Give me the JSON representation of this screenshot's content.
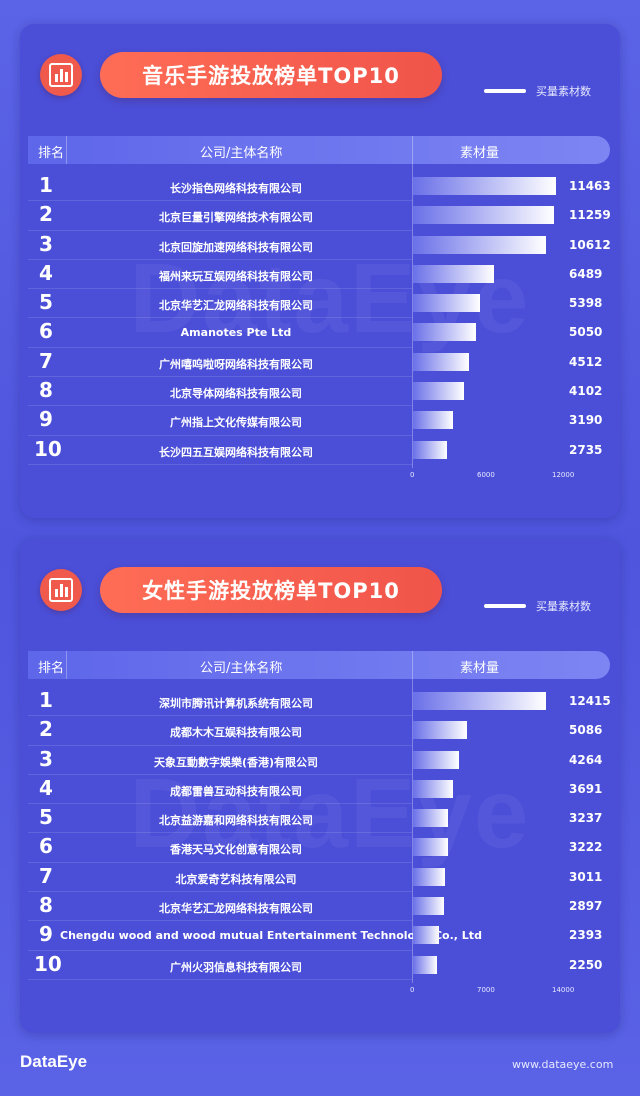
{
  "colors": {
    "background": "#5259e0",
    "panel": "#4b4fd8",
    "title_pill": "#f5594b",
    "bar_end": "#ffffff"
  },
  "icons": {
    "panel_icon": "bar-chart-icon"
  },
  "chart_data": [
    {
      "type": "bar",
      "title": "音乐手游投放榜单TOP10",
      "legend": "买量素材数",
      "columns": [
        "排名",
        "公司/主体名称",
        "素材量"
      ],
      "categories": [
        "长沙指色网络科技有限公司",
        "北京巨量引擎网络技术有限公司",
        "北京回旋加速网络科技有限公司",
        "福州来玩互娱网络科技有限公司",
        "北京华艺汇龙网络科技有限公司",
        "Amanotes Pte Ltd",
        "广州嘻呜啦呀网络科技有限公司",
        "北京导体网络科技有限公司",
        "广州指上文化传媒有限公司",
        "长沙四五互娱网络科技有限公司"
      ],
      "ranks": [
        "1",
        "2",
        "3",
        "4",
        "5",
        "6",
        "7",
        "8",
        "9",
        "10"
      ],
      "values": [
        11463,
        11259,
        10612,
        6489,
        5398,
        5050,
        4512,
        4102,
        3190,
        2735
      ],
      "xlim": [
        0,
        12000
      ],
      "xticks": [
        "0",
        "6000",
        "12000"
      ],
      "grid": false,
      "legend_position": "top-right"
    },
    {
      "type": "bar",
      "title": "女性手游投放榜单TOP10",
      "legend": "买量素材数",
      "columns": [
        "排名",
        "公司/主体名称",
        "素材量"
      ],
      "categories": [
        "深圳市腾讯计算机系统有限公司",
        "成都木木互娱科技有限公司",
        "天象互動數字娛樂(香港)有限公司",
        "成都雷兽互动科技有限公司",
        "北京益游嘉和网络科技有限公司",
        "香港天马文化创意有限公司",
        "北京爱奇艺科技有限公司",
        "北京华艺汇龙网络科技有限公司",
        "Chengdu wood and wood mutual Entertainment Technology Co., Ltd",
        "广州火羽信息科技有限公司"
      ],
      "ranks": [
        "1",
        "2",
        "3",
        "4",
        "5",
        "6",
        "7",
        "8",
        "9",
        "10"
      ],
      "values": [
        12415,
        5086,
        4264,
        3691,
        3237,
        3222,
        3011,
        2897,
        2393,
        2250
      ],
      "xlim": [
        0,
        14000
      ],
      "xticks": [
        "0",
        "7000",
        "14000"
      ],
      "grid": false,
      "legend_position": "top-right"
    }
  ],
  "watermark": "DataEye",
  "footer": {
    "logo": "DataEye",
    "url": "www.dataeye.com"
  }
}
